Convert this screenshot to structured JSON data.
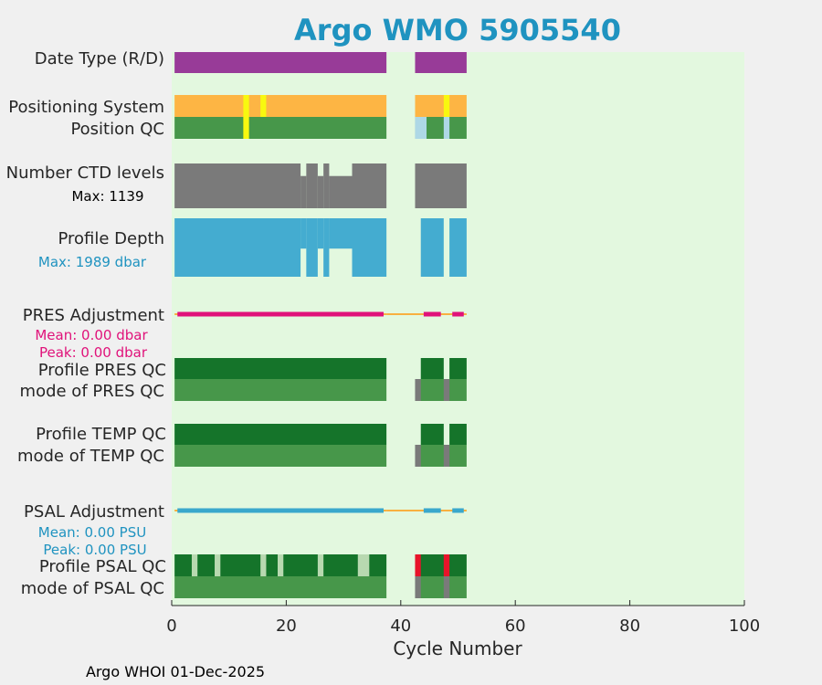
{
  "chart_data": {
    "type": "status-strip",
    "title": "Argo WMO 5905540",
    "xlabel": "Cycle Number",
    "xlim": [
      0,
      100
    ],
    "xticks": [
      "0",
      "20",
      "40",
      "60",
      "80",
      "100"
    ],
    "footer": "Argo WHOI 01-Dec-2025",
    "colors": {
      "title": "#1f93c0",
      "plot_bg": "#e3f8df",
      "purple": "#983b98",
      "orange": "#fdb544",
      "yellow": "#f8f80f",
      "green": "#47974a",
      "dark_green": "#15742a",
      "light_blue": "#aed8e6",
      "gray": "#7a7a7a",
      "blue": "#44acd0",
      "magenta": "#e0127a",
      "red": "#e8142a",
      "pale_green": "#b8d9b0",
      "line_orange": "#f8b040",
      "psal_line": "#3aa8cc"
    },
    "labels": {
      "date_type": "Date Type (R/D)",
      "positioning": "Positioning System",
      "position_qc": "Position QC",
      "ctd_levels": "Number CTD levels",
      "ctd_max": "Max: 1139",
      "profile_depth": "Profile Depth",
      "depth_max": "Max: 1989 dbar",
      "pres_adj": "PRES Adjustment",
      "pres_mean": "Mean: 0.00 dbar",
      "pres_peak": "Peak: 0.00 dbar",
      "profile_pres_qc": "Profile PRES QC",
      "mode_pres_qc": "mode of PRES QC",
      "profile_temp_qc": "Profile TEMP QC",
      "mode_temp_qc": "mode of TEMP QC",
      "psal_adj": "PSAL Adjustment",
      "psal_mean": "Mean: 0.00 PSU",
      "psal_peak": "Peak: 0.00 PSU",
      "profile_psal_qc": "Profile PSAL QC",
      "mode_psal_qc": "mode of PSAL QC"
    },
    "tracks": {
      "date_type": [
        [
          0.5,
          37.5,
          "purple"
        ],
        [
          42.5,
          51.5,
          "purple"
        ]
      ],
      "positioning": [
        [
          0.5,
          37.5,
          "orange"
        ],
        [
          42.5,
          51.5,
          "orange"
        ],
        [
          12.5,
          13.5,
          "yellow"
        ],
        [
          15.5,
          16.5,
          "yellow"
        ],
        [
          47.5,
          48.5,
          "yellow"
        ]
      ],
      "position_qc": [
        [
          0.5,
          37.5,
          "green"
        ],
        [
          42.5,
          51.5,
          "green"
        ],
        [
          12.5,
          13.5,
          "yellow"
        ],
        [
          42.5,
          44.5,
          "light_blue"
        ],
        [
          47.5,
          48.5,
          "light_blue"
        ]
      ],
      "profile_pres_qc": [
        [
          0.5,
          37.5,
          "dark_green"
        ],
        [
          43.5,
          47.5,
          "dark_green"
        ],
        [
          48.5,
          51.5,
          "dark_green"
        ]
      ],
      "mode_pres_qc": [
        [
          0.5,
          37.5,
          "green"
        ],
        [
          42.5,
          51.5,
          "green"
        ],
        [
          42.5,
          43.5,
          "gray"
        ],
        [
          47.5,
          48.5,
          "gray"
        ]
      ],
      "profile_temp_qc": [
        [
          0.5,
          37.5,
          "dark_green"
        ],
        [
          43.5,
          47.5,
          "dark_green"
        ],
        [
          48.5,
          51.5,
          "dark_green"
        ]
      ],
      "mode_temp_qc": [
        [
          0.5,
          37.5,
          "green"
        ],
        [
          42.5,
          51.5,
          "green"
        ],
        [
          42.5,
          43.5,
          "gray"
        ],
        [
          47.5,
          48.5,
          "gray"
        ]
      ],
      "profile_psal_qc": [
        [
          0.5,
          37.5,
          "dark_green"
        ],
        [
          42.5,
          51.5,
          "dark_green"
        ],
        [
          3.5,
          4.5,
          "pale_green"
        ],
        [
          7.5,
          8.5,
          "pale_green"
        ],
        [
          15.5,
          16.5,
          "pale_green"
        ],
        [
          18.5,
          19.5,
          "pale_green"
        ],
        [
          25.5,
          26.5,
          "pale_green"
        ],
        [
          32.5,
          34.5,
          "pale_green"
        ],
        [
          42.5,
          43.5,
          "red"
        ],
        [
          47.5,
          48.5,
          "red"
        ]
      ],
      "mode_psal_qc": [
        [
          0.5,
          37.5,
          "green"
        ],
        [
          42.5,
          51.5,
          "green"
        ],
        [
          42.5,
          43.5,
          "gray"
        ],
        [
          47.5,
          48.5,
          "gray"
        ]
      ]
    },
    "ctd_levels": {
      "max": 1139,
      "values": [
        [
          0.5,
          22.5,
          1139
        ],
        [
          22.5,
          23.5,
          820
        ],
        [
          23.5,
          25.5,
          1139
        ],
        [
          25.5,
          26.5,
          820
        ],
        [
          26.5,
          27.5,
          1139
        ],
        [
          27.5,
          31.5,
          820
        ],
        [
          31.5,
          37.5,
          1139
        ],
        [
          42.5,
          51.5,
          1139
        ]
      ]
    },
    "profile_depth": {
      "max": 1989,
      "values": [
        [
          0.5,
          22.5,
          1989
        ],
        [
          22.5,
          23.5,
          1032
        ],
        [
          23.5,
          25.5,
          1989
        ],
        [
          25.5,
          26.5,
          1032
        ],
        [
          26.5,
          27.5,
          1989
        ],
        [
          27.5,
          31.5,
          1032
        ],
        [
          31.5,
          37.5,
          1989
        ],
        [
          43.5,
          47.5,
          1989
        ],
        [
          48.5,
          51.5,
          1989
        ]
      ]
    },
    "pres_adjustment": {
      "line": [
        [
          0.5,
          37.5
        ],
        [
          37.5,
          51.5
        ]
      ],
      "thick": [
        [
          1,
          37
        ],
        [
          44,
          47
        ],
        [
          49,
          51
        ]
      ]
    },
    "psal_adjustment": {
      "line": [
        [
          0.5,
          37.5
        ],
        [
          37.5,
          51.5
        ]
      ],
      "thick": [
        [
          1,
          37
        ],
        [
          44,
          47
        ],
        [
          49,
          51
        ]
      ]
    }
  }
}
